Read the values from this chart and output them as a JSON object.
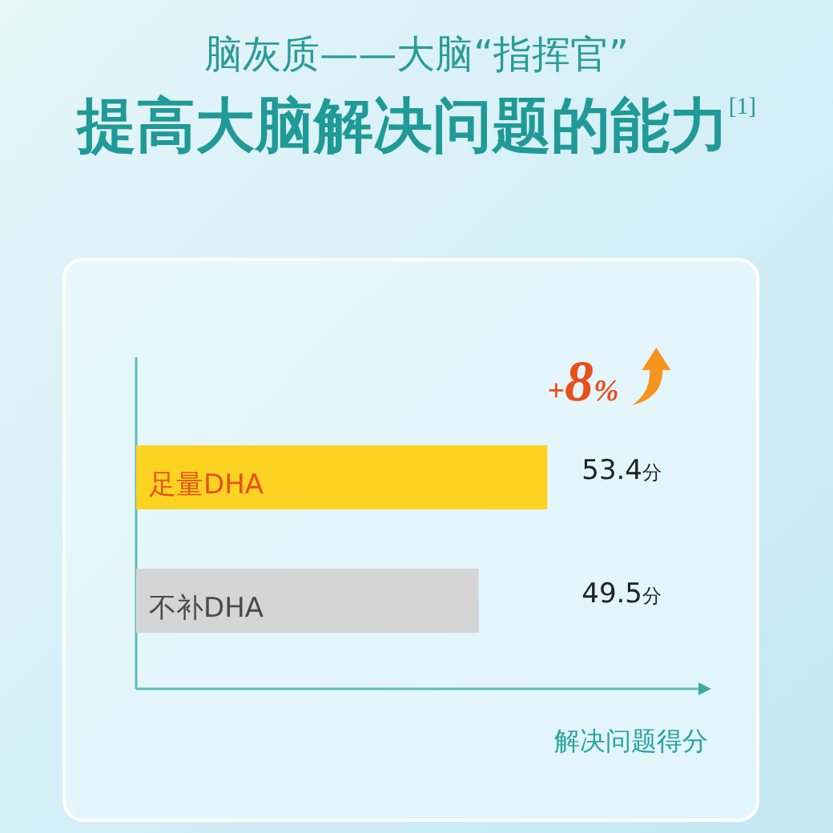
{
  "chart_data": {
    "type": "bar",
    "orientation": "horizontal",
    "title": "脑灰质——大脑“指挥官”",
    "subtitle": "提高大脑解决问题的能力$^{[1]}$",
    "xlabel": "解决问题得分",
    "categories": [
      "足量DHA",
      "不补DHA"
    ],
    "values": [
      53.4,
      49.5
    ],
    "colors": [
      "#fdd321",
      "#d5d5d5"
    ],
    "value_labels": [
      "53.4分",
      "49.5分"
    ],
    "xlim": [
      30,
      62
    ],
    "tick_labels": "y",
    "annotations": [
      "+8%"
    ]
  }
}
